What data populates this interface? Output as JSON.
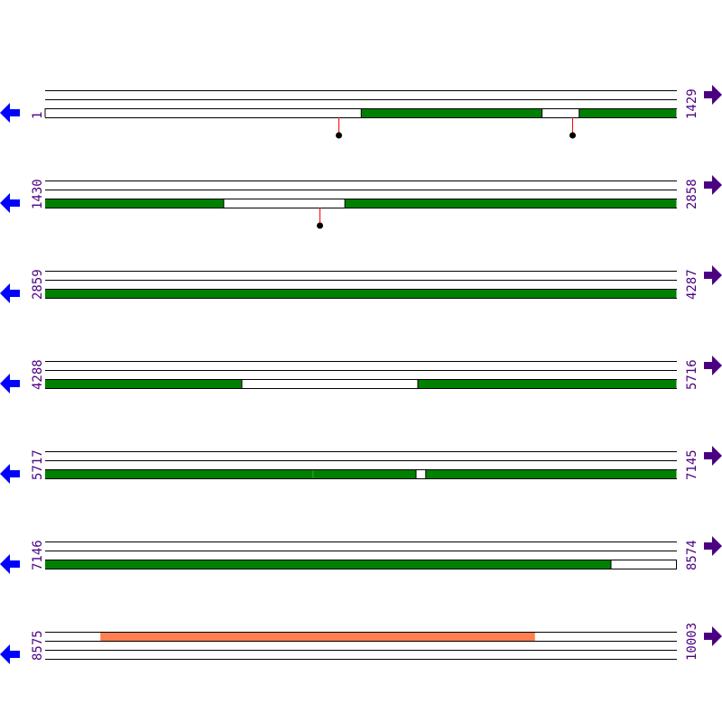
{
  "colors": {
    "cds": "#008000",
    "gap": "#ffffff",
    "highlight": "#ff7f50",
    "stem": "#ff0000",
    "label": "#4b0082",
    "left_arrow": "#0000ff",
    "right_arrow": "#4b0082"
  },
  "icons": {
    "left": "arrow-left-icon",
    "right": "arrow-right-icon"
  },
  "rows": [
    {
      "start": "1",
      "end": "1429",
      "s": 1,
      "e": 1429,
      "lane": 2,
      "features": [
        {
          "from": 1,
          "to": 716,
          "type": "gap"
        },
        {
          "from": 716,
          "to": 1125,
          "type": "cds"
        },
        {
          "from": 1125,
          "to": 1209,
          "type": "gap"
        },
        {
          "from": 1209,
          "to": 1429,
          "type": "cds"
        }
      ],
      "markers": [
        664,
        1193
      ]
    },
    {
      "start": "1430",
      "end": "2858",
      "s": 1430,
      "e": 2858,
      "lane": 2,
      "features": [
        {
          "from": 1430,
          "to": 1834,
          "type": "cds"
        },
        {
          "from": 1834,
          "to": 2108,
          "type": "gap"
        },
        {
          "from": 2108,
          "to": 2858,
          "type": "cds"
        }
      ],
      "markers": [
        2051
      ]
    },
    {
      "start": "2859",
      "end": "4287",
      "s": 2859,
      "e": 4287,
      "lane": 2,
      "features": [
        {
          "from": 2859,
          "to": 4287,
          "type": "cds"
        }
      ],
      "markers": []
    },
    {
      "start": "4288",
      "end": "5716",
      "s": 4288,
      "e": 5716,
      "lane": 2,
      "features": [
        {
          "from": 4288,
          "to": 4733,
          "type": "cds"
        },
        {
          "from": 4733,
          "to": 5131,
          "type": "gap"
        },
        {
          "from": 5131,
          "to": 5716,
          "type": "cds"
        }
      ],
      "markers": []
    },
    {
      "start": "5717",
      "end": "7145",
      "s": 5717,
      "e": 7145,
      "lane": 2,
      "features": [
        {
          "from": 5717,
          "to": 6323,
          "type": "cds"
        },
        {
          "from": 6323.5,
          "to": 6556,
          "type": "cds"
        },
        {
          "from": 6556,
          "to": 6578,
          "type": "gap"
        },
        {
          "from": 6578,
          "to": 7145,
          "type": "cds"
        }
      ],
      "markers": []
    },
    {
      "start": "7146",
      "end": "8574",
      "s": 7146,
      "e": 8574,
      "lane": 2,
      "features": [
        {
          "from": 7146,
          "to": 8426,
          "type": "cds"
        },
        {
          "from": 8426,
          "to": 8574,
          "type": "gap"
        }
      ],
      "markers": []
    },
    {
      "start": "8575",
      "end": "10003",
      "s": 8575,
      "e": 10003,
      "lane": 0,
      "features": [
        {
          "from": 8700,
          "to": 9683,
          "type": "highlight"
        }
      ],
      "markers": []
    }
  ]
}
